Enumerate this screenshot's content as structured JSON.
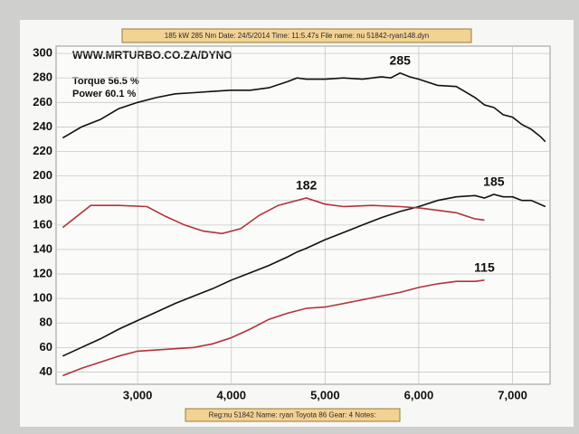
{
  "header": "185 kW    285 Nm    Date: 24/5/2014    Time: 11:5.47s    File name: nu 51842-ryan148.dyn",
  "footer": "Reg:nu 51842  Name: ryan   Toyota 86  Gear: 4  Notes:",
  "chart_data": {
    "type": "line",
    "website": "WWW.MRTURBO.CO.ZA/DYNO",
    "notes": [
      "Torque 56.5 %",
      "Power 60.1 %"
    ],
    "xlim": [
      2130,
      7400
    ],
    "xticks": [
      {
        "value": 3000,
        "label": "3,000"
      },
      {
        "value": 4000,
        "label": "4,000"
      },
      {
        "value": 5000,
        "label": "5,000"
      },
      {
        "value": 6000,
        "label": "6,000"
      },
      {
        "value": 7000,
        "label": "7,000"
      }
    ],
    "ylim": [
      30,
      306
    ],
    "yticks": [
      40,
      60,
      80,
      100,
      120,
      140,
      160,
      180,
      200,
      220,
      240,
      260,
      280,
      300
    ],
    "grid": true,
    "series": [
      {
        "color": "#111111",
        "label": "285",
        "x": [
          2200,
          2400,
          2600,
          2800,
          3000,
          3200,
          3400,
          3600,
          3800,
          4000,
          4200,
          4400,
          4600,
          4700,
          4800,
          5000,
          5200,
          5400,
          5600,
          5700,
          5800,
          5900,
          6000,
          6200,
          6400,
          6600,
          6700,
          6800,
          6900,
          7000,
          7100,
          7200,
          7300,
          7350
        ],
        "values": [
          231,
          240,
          246,
          255,
          260,
          264,
          267,
          268,
          269,
          270,
          270,
          272,
          277,
          280,
          279,
          279,
          280,
          279,
          281,
          280,
          284,
          281,
          279,
          274,
          273,
          264,
          258,
          256,
          250,
          248,
          242,
          238,
          232,
          228
        ]
      },
      {
        "color": "#111111",
        "label": "185",
        "x": [
          2200,
          2400,
          2600,
          2800,
          3000,
          3200,
          3400,
          3600,
          3800,
          4000,
          4200,
          4400,
          4600,
          4700,
          4800,
          5000,
          5200,
          5400,
          5600,
          5800,
          6000,
          6200,
          6400,
          6600,
          6700,
          6800,
          6900,
          7000,
          7100,
          7200,
          7350
        ],
        "values": [
          53,
          60,
          67,
          75,
          82,
          89,
          96,
          102,
          108,
          115,
          121,
          127,
          134,
          138,
          141,
          148,
          154,
          160,
          166,
          171,
          175,
          180,
          183,
          184,
          182,
          185,
          183,
          183,
          180,
          180,
          175
        ]
      },
      {
        "color": "#b0333a",
        "label": "182",
        "x": [
          2200,
          2500,
          2800,
          3100,
          3300,
          3500,
          3700,
          3900,
          4100,
          4300,
          4500,
          4800,
          5000,
          5200,
          5500,
          5800,
          6000,
          6200,
          6400,
          6600,
          6700
        ],
        "values": [
          158,
          176,
          176,
          175,
          167,
          160,
          155,
          153,
          157,
          168,
          176,
          182,
          177,
          175,
          176,
          175,
          174,
          172,
          170,
          165,
          164
        ]
      },
      {
        "color": "#b0333a",
        "label": "115",
        "x": [
          2200,
          2400,
          2600,
          2800,
          3000,
          3200,
          3400,
          3600,
          3800,
          4000,
          4200,
          4400,
          4600,
          4800,
          5000,
          5200,
          5400,
          5600,
          5800,
          6000,
          6200,
          6400,
          6600,
          6700
        ],
        "values": [
          37,
          43,
          48,
          53,
          57,
          58,
          59,
          60,
          63,
          68,
          75,
          83,
          88,
          92,
          93,
          96,
          99,
          102,
          105,
          109,
          112,
          114,
          114,
          115
        ]
      }
    ]
  }
}
